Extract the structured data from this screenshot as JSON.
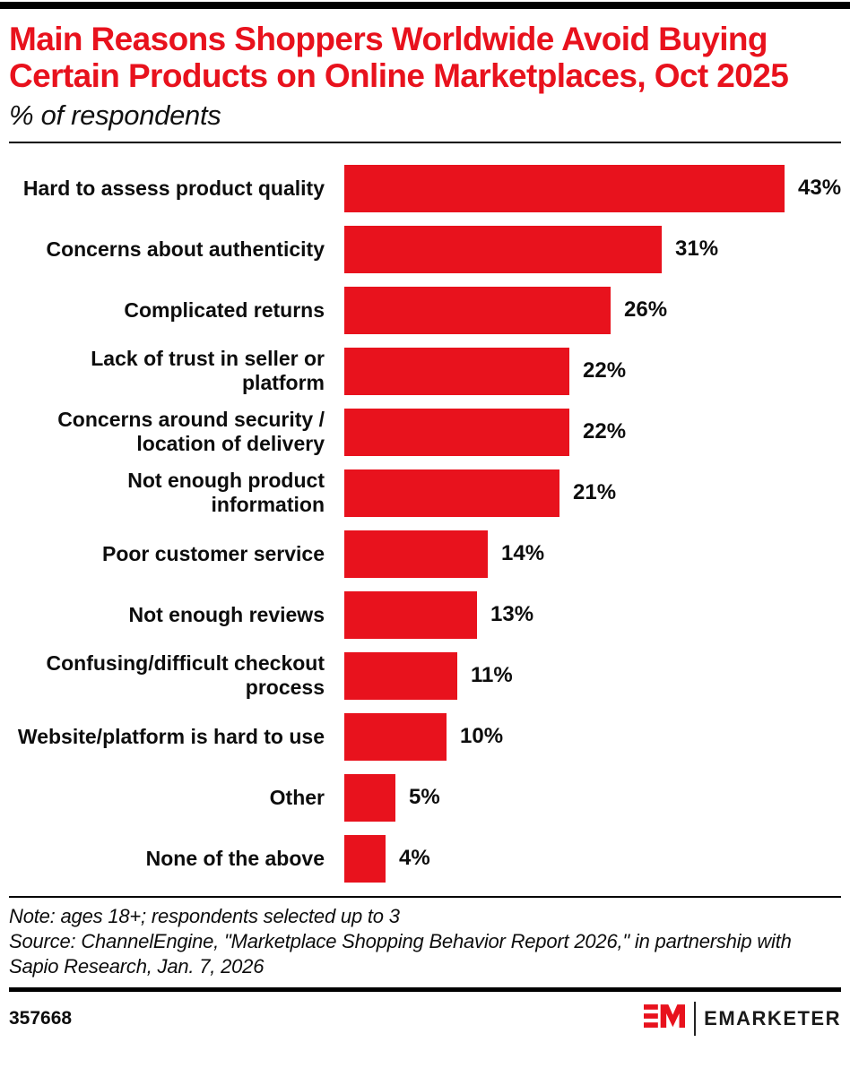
{
  "header": {
    "title": "Main Reasons Shoppers Worldwide Avoid Buying Certain Products on Online Marketplaces, Oct 2025",
    "subtitle": "% of respondents"
  },
  "chart_data": {
    "type": "bar",
    "orientation": "horizontal",
    "title": "Main Reasons Shoppers Worldwide Avoid Buying Certain Products on Online Marketplaces, Oct 2025",
    "subtitle": "% of respondents",
    "unit": "%",
    "categories": [
      "Hard to assess product quality",
      "Concerns about authenticity",
      "Complicated returns",
      "Lack of trust in seller or platform",
      "Concerns around security / location of delivery",
      "Not enough product information",
      "Poor customer service",
      "Not enough reviews",
      "Confusing/difficult checkout process",
      "Website/platform is hard to use",
      "Other",
      "None of the above"
    ],
    "values": [
      43,
      31,
      26,
      22,
      22,
      21,
      14,
      13,
      11,
      10,
      5,
      4
    ],
    "value_labels": [
      "43%",
      "31%",
      "26%",
      "22%",
      "22%",
      "21%",
      "14%",
      "13%",
      "11%",
      "10%",
      "5%",
      "4%"
    ],
    "xlim": [
      0,
      45
    ],
    "grid": false,
    "legend": false,
    "bar_color": "#e8121d"
  },
  "footnotes": {
    "note": "Note: ages 18+; respondents selected up to 3",
    "source": "Source: ChannelEngine, \"Marketplace Shopping Behavior Report 2026,\" in partnership with Sapio Research, Jan. 7, 2026"
  },
  "footer": {
    "chart_id": "357668",
    "logo_monogram": "EM",
    "logo_wordmark": "EMARKETER"
  },
  "colors": {
    "accent_red": "#e8121d",
    "text": "#0d0d0d",
    "background": "#ffffff"
  }
}
